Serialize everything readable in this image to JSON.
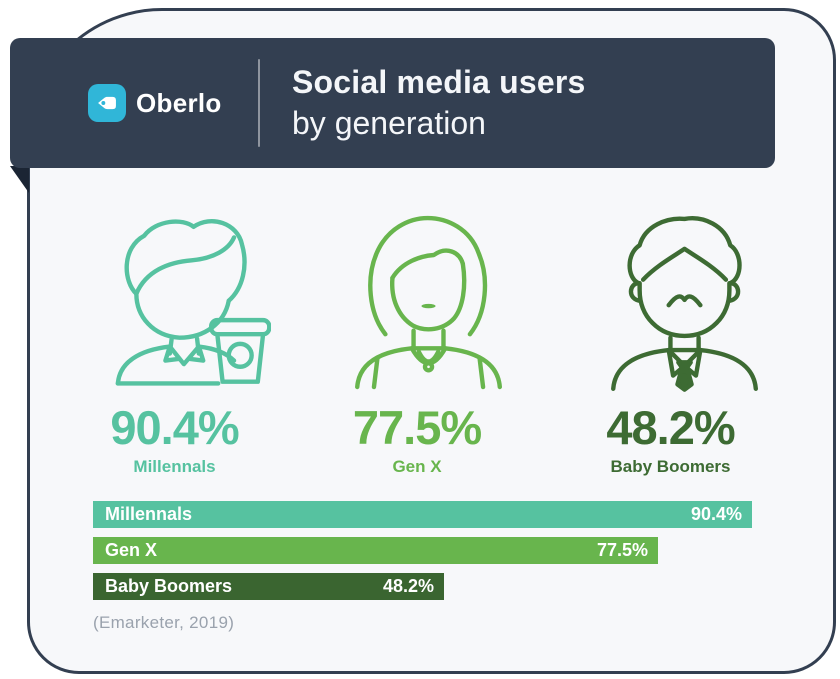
{
  "brand": {
    "name": "Oberlo"
  },
  "header": {
    "title_line1": "Social media users",
    "title_line2": "by generation"
  },
  "stats": [
    {
      "value": "90.4%",
      "label": "Millennals",
      "color": "#56c2a0"
    },
    {
      "value": "77.5%",
      "label": "Gen X",
      "color": "#68b54d"
    },
    {
      "value": "48.2%",
      "label": "Baby Boomers",
      "color": "#3d6b33"
    }
  ],
  "chart_data": {
    "type": "bar",
    "orientation": "horizontal",
    "categories": [
      "Millennals",
      "Gen X",
      "Baby Boomers"
    ],
    "values": [
      90.4,
      77.5,
      48.2
    ],
    "value_labels": [
      "90.4%",
      "77.5%",
      "48.2%"
    ],
    "colors": [
      "#56c2a0",
      "#68b54d",
      "#3a6530"
    ],
    "xlim": [
      0,
      100
    ],
    "grid": false,
    "legend": false,
    "source": "(Emarketer, 2019)"
  },
  "colors": {
    "banner": "#333f51",
    "fold": "#1b2534",
    "card_bg": "#f7f8fa",
    "brand_tile": "#30b6d8"
  }
}
